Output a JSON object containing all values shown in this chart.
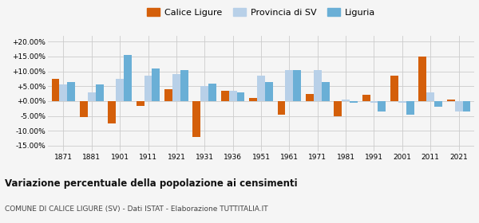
{
  "years": [
    1871,
    1881,
    1901,
    1911,
    1921,
    1931,
    1936,
    1951,
    1961,
    1971,
    1981,
    1991,
    2001,
    2011,
    2021
  ],
  "calice": [
    7.5,
    -5.5,
    -7.5,
    -1.5,
    4.0,
    -12.0,
    3.5,
    1.0,
    -4.5,
    2.5,
    -5.0,
    2.0,
    8.5,
    15.0,
    0.5
  ],
  "provincia": [
    5.5,
    3.0,
    7.5,
    8.5,
    9.0,
    5.0,
    3.5,
    8.5,
    10.5,
    10.5,
    0.5,
    -0.5,
    -0.5,
    3.0,
    -3.5
  ],
  "liguria": [
    6.5,
    5.5,
    15.5,
    11.0,
    10.5,
    6.0,
    3.0,
    6.5,
    10.5,
    6.5,
    -0.5,
    -3.5,
    -4.5,
    -2.0,
    -3.5
  ],
  "color_calice": "#d45f0a",
  "color_provincia": "#b8d0e8",
  "color_liguria": "#6aafd6",
  "title1": "Variazione percentuale della popolazione ai censimenti",
  "title2": "COMUNE DI CALICE LIGURE (SV) - Dati ISTAT - Elaborazione TUTTITALIA.IT",
  "legend_labels": [
    "Calice Ligure",
    "Provincia di SV",
    "Liguria"
  ],
  "ylim": [
    -17,
    22
  ],
  "yticks": [
    -15,
    -10,
    -5,
    0,
    5,
    10,
    15,
    20
  ],
  "background_color": "#f5f5f5",
  "grid_color": "#cccccc"
}
